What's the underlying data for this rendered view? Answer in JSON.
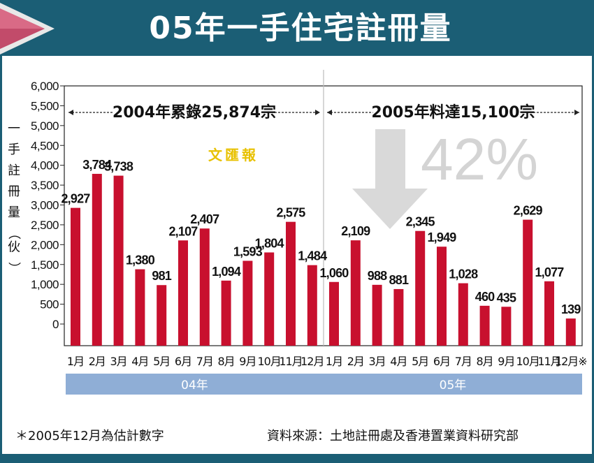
{
  "header": {
    "title": "05年一手住宅註冊量"
  },
  "chart_data": {
    "type": "bar",
    "title": "05年一手住宅註冊量",
    "ylabel": "一手註冊量（伙）",
    "ylim": [
      -500,
      6000
    ],
    "yticks": [
      "6,000",
      "5,500",
      "5,000",
      "4,500",
      "4,000",
      "3,500",
      "3,000",
      "2,500",
      "2,000",
      "1,500",
      "1,000",
      "500",
      "0"
    ],
    "series": [
      {
        "name": "04年",
        "summary": "2004年累錄25,874宗",
        "categories": [
          "1月",
          "2月",
          "3月",
          "4月",
          "5月",
          "6月",
          "7月",
          "8月",
          "9月",
          "10月",
          "11月",
          "12月"
        ],
        "values": [
          2927,
          3784,
          3738,
          1380,
          981,
          2107,
          2407,
          1094,
          1593,
          1804,
          2575,
          1484
        ],
        "labels": [
          "2,927",
          "3,784",
          "3,738",
          "1,380",
          "981",
          "2,107",
          "2,407",
          "1,094",
          "1,593",
          "1,804",
          "2,575",
          "1,484"
        ]
      },
      {
        "name": "05年",
        "summary": "2005年料達15,100宗",
        "categories": [
          "1月",
          "2月",
          "3月",
          "4月",
          "5月",
          "6月",
          "7月",
          "8月",
          "9月",
          "10月",
          "11月",
          "12月※"
        ],
        "values": [
          1060,
          2109,
          988,
          881,
          2345,
          1949,
          1028,
          460,
          435,
          2629,
          1077,
          139
        ],
        "labels": [
          "1,060",
          "2,109",
          "988",
          "881",
          "2,345",
          "1,949",
          "1,028",
          "460",
          "435",
          "2,629",
          "1,077",
          "139"
        ]
      }
    ],
    "annotation": "42%",
    "watermark": "文匯報",
    "bar_color": "#c8102e",
    "band_color": "#8faed6"
  },
  "footer": {
    "footnote": "＊2005年12月為估計數字",
    "source": "資料來源：土地註冊處及香港置業資料研究部"
  }
}
